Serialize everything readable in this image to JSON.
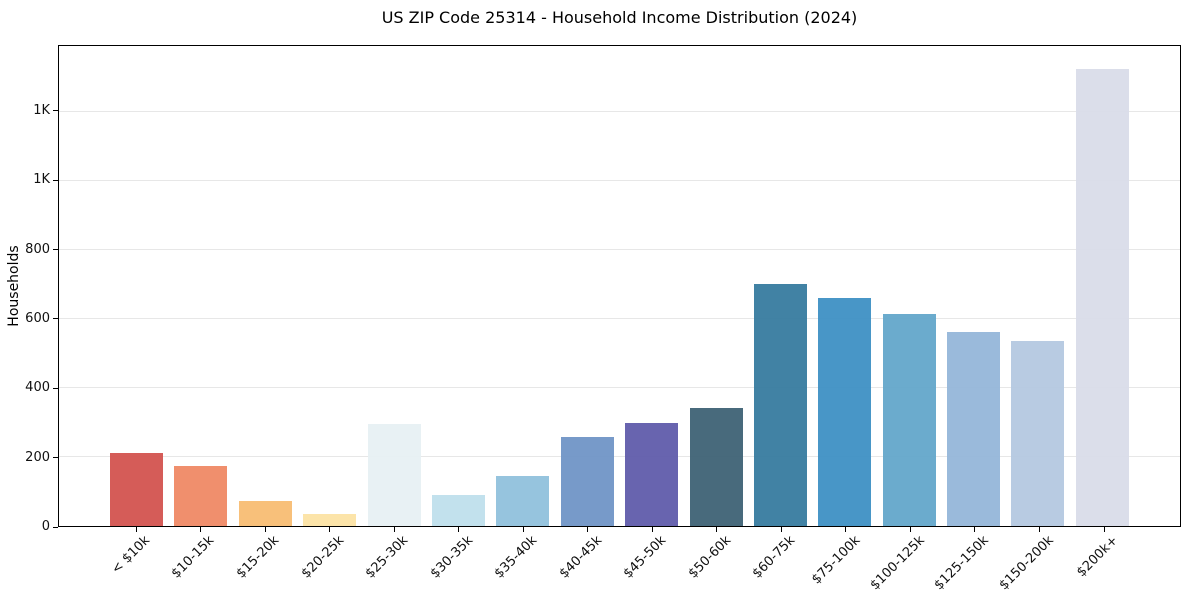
{
  "chart_data": {
    "type": "bar",
    "title": "US ZIP Code 25314 - Household Income Distribution (2024)",
    "xlabel": "",
    "ylabel": "Households",
    "categories": [
      "< $10k",
      "$10-15k",
      "$15-20k",
      "$20-25k",
      "$25-30k",
      "$30-35k",
      "$35-40k",
      "$40-45k",
      "$45-50k",
      "$50-60k",
      "$60-75k",
      "$75-100k",
      "$100-125k",
      "$125-150k",
      "$150-200k",
      "$200k+"
    ],
    "values": [
      211,
      174,
      72,
      34,
      295,
      89,
      145,
      259,
      297,
      341,
      700,
      661,
      615,
      562,
      537,
      1323
    ],
    "bar_colors": [
      "#d2504b",
      "#ef8662",
      "#f8bb70",
      "#fce2a3",
      "#e6f0f3",
      "#bddfec",
      "#8ec0dc",
      "#6d92c5",
      "#5d58a9",
      "#3a5f72",
      "#33799d",
      "#3a8ec3",
      "#60a5c9",
      "#92b5d8",
      "#b3c7e0",
      "#d8dbe8"
    ],
    "ylim": [
      0,
      1390
    ],
    "yticks": {
      "values": [
        0,
        200,
        400,
        600,
        800,
        1000,
        1200
      ],
      "labels": [
        "0",
        "200",
        "400",
        "600",
        "800",
        "1K",
        "1K"
      ]
    },
    "grid": "horizontal",
    "grid_color": "#e7e7e7",
    "spine_color": "#000000",
    "text_color": "#111111",
    "legend_position": "none",
    "bar_width_ratio": 0.8
  }
}
